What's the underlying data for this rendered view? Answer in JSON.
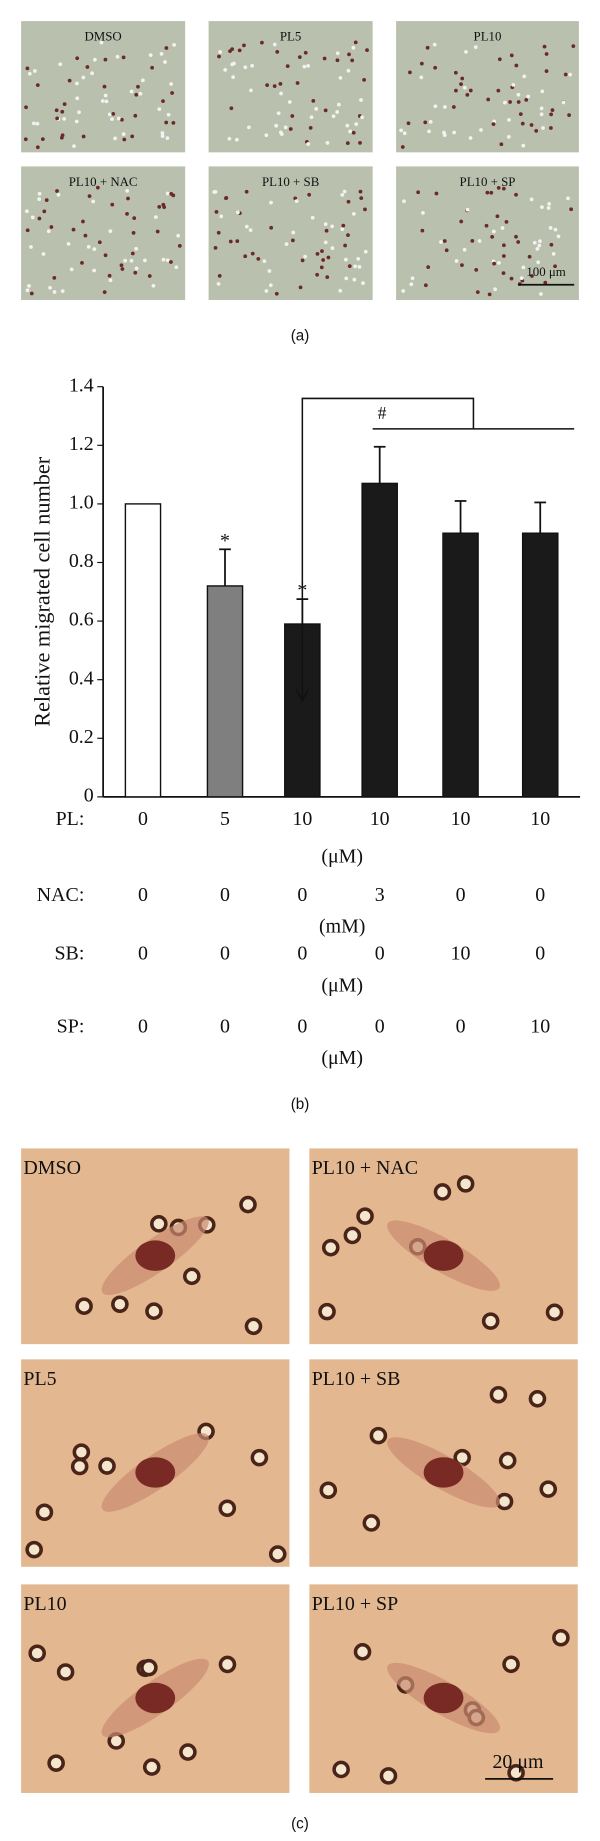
{
  "panel_a": {
    "labels": [
      "DMSO",
      "PL5",
      "PL10",
      "PL10 + NAC",
      "PL10 + SB",
      "PL10 + SP"
    ],
    "scale_bar": "100 μm",
    "caption": "(a)"
  },
  "chart_data": {
    "type": "bar",
    "y_label": "Relative migrated cell number",
    "x_label": "PL:",
    "x_unit": "(μM)",
    "categories": [
      "0",
      "5",
      "10",
      "10",
      "10",
      "10"
    ],
    "values": [
      1.0,
      0.72,
      0.59,
      1.07,
      0.9,
      0.9
    ],
    "errors": [
      0,
      0.125,
      0.085,
      0.125,
      0.11,
      0.105
    ],
    "colors": [
      "#ffffff",
      "#7f7f7f",
      "#1a1a1a",
      "#1a1a1a",
      "#1a1a1a",
      "#1a1a1a"
    ],
    "ylim": [
      0,
      1.4
    ],
    "yticks": [
      0,
      0.2,
      0.4,
      0.6,
      0.8,
      {
        "value": 1,
        "label": "1.0"
      },
      1.2,
      1.4
    ],
    "annotations": [
      "*",
      "*",
      "#"
    ],
    "treatments": [
      {
        "label": "NAC:",
        "values": [
          0,
          0,
          0,
          3,
          0,
          0
        ],
        "unit": "(mM)"
      },
      {
        "label": "SB:",
        "values": [
          0,
          0,
          0,
          0,
          10,
          0
        ],
        "unit": "(μM)"
      },
      {
        "label": "SP:",
        "values": [
          0,
          0,
          0,
          0,
          0,
          10
        ],
        "unit": "(μM)"
      }
    ],
    "caption": "(b)"
  },
  "panel_c": {
    "labels": [
      "DMSO",
      "PL10 + NAC",
      "PL5",
      "PL10 + SB",
      "PL10",
      "PL10 + SP"
    ],
    "scale_bar": "20 μm",
    "caption": "(c)"
  }
}
